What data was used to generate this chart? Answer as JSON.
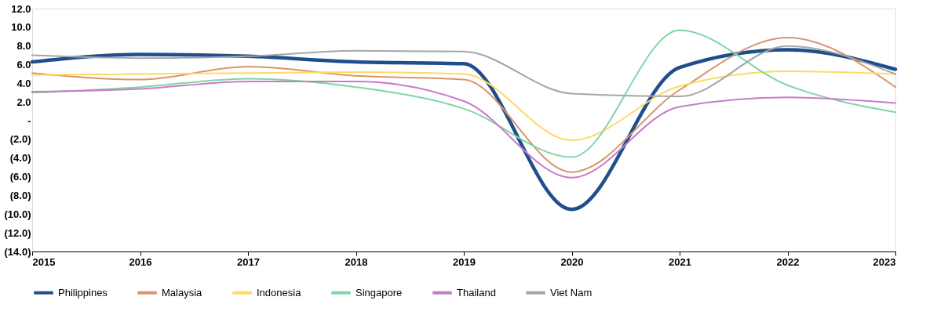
{
  "chart_data": {
    "type": "line",
    "x": [
      2015,
      2016,
      2017,
      2018,
      2019,
      2020,
      2021,
      2022,
      2023
    ],
    "xlim": [
      2015,
      2023
    ],
    "xticks": [
      2015,
      2016,
      2017,
      2018,
      2019,
      2020,
      2021,
      2022,
      2023
    ],
    "ylim": [
      -14,
      12
    ],
    "yticks": [
      {
        "value": -14,
        "label": "(14.0)"
      },
      {
        "value": -12,
        "label": "(12.0)"
      },
      {
        "value": -10,
        "label": "(10.0)"
      },
      {
        "value": -8,
        "label": "(8.0)"
      },
      {
        "value": -6,
        "label": "(6.0)"
      },
      {
        "value": -4,
        "label": "(4.0)"
      },
      {
        "value": -2,
        "label": "(2.0)"
      },
      {
        "value": 0,
        "label": "-"
      },
      {
        "value": 2,
        "label": "2.0"
      },
      {
        "value": 4,
        "label": "4.0"
      },
      {
        "value": 6,
        "label": "6.0"
      },
      {
        "value": 8,
        "label": "8.0"
      },
      {
        "value": 10,
        "label": "10.0"
      },
      {
        "value": 12,
        "label": "12.0"
      }
    ],
    "grid": false,
    "legend": "bottom",
    "marker": "none",
    "line_style": "solid",
    "series": [
      {
        "name": "Philippines",
        "color": "#1f4e8c",
        "values": [
          6.3,
          7.1,
          6.9,
          6.3,
          6.1,
          -9.5,
          5.7,
          7.6,
          5.5
        ]
      },
      {
        "name": "Malaysia",
        "color": "#d9956b",
        "values": [
          5.1,
          4.4,
          5.8,
          4.8,
          4.4,
          -5.5,
          3.3,
          8.9,
          3.6
        ]
      },
      {
        "name": "Indonesia",
        "color": "#ffd966",
        "values": [
          4.9,
          5.0,
          5.1,
          5.2,
          5.0,
          -2.1,
          3.7,
          5.3,
          5.0
        ]
      },
      {
        "name": "Singapore",
        "color": "#7fd6a5",
        "values": [
          3.0,
          3.6,
          4.5,
          3.6,
          1.3,
          -3.9,
          9.7,
          3.8,
          0.9
        ]
      },
      {
        "name": "Thailand",
        "color": "#c77cc7",
        "values": [
          3.1,
          3.4,
          4.2,
          4.2,
          2.1,
          -6.1,
          1.5,
          2.5,
          1.9
        ]
      },
      {
        "name": "Viet Nam",
        "color": "#a6a6a6",
        "values": [
          7.0,
          6.7,
          6.9,
          7.5,
          7.4,
          2.9,
          2.6,
          8.0,
          5.0
        ]
      }
    ]
  }
}
